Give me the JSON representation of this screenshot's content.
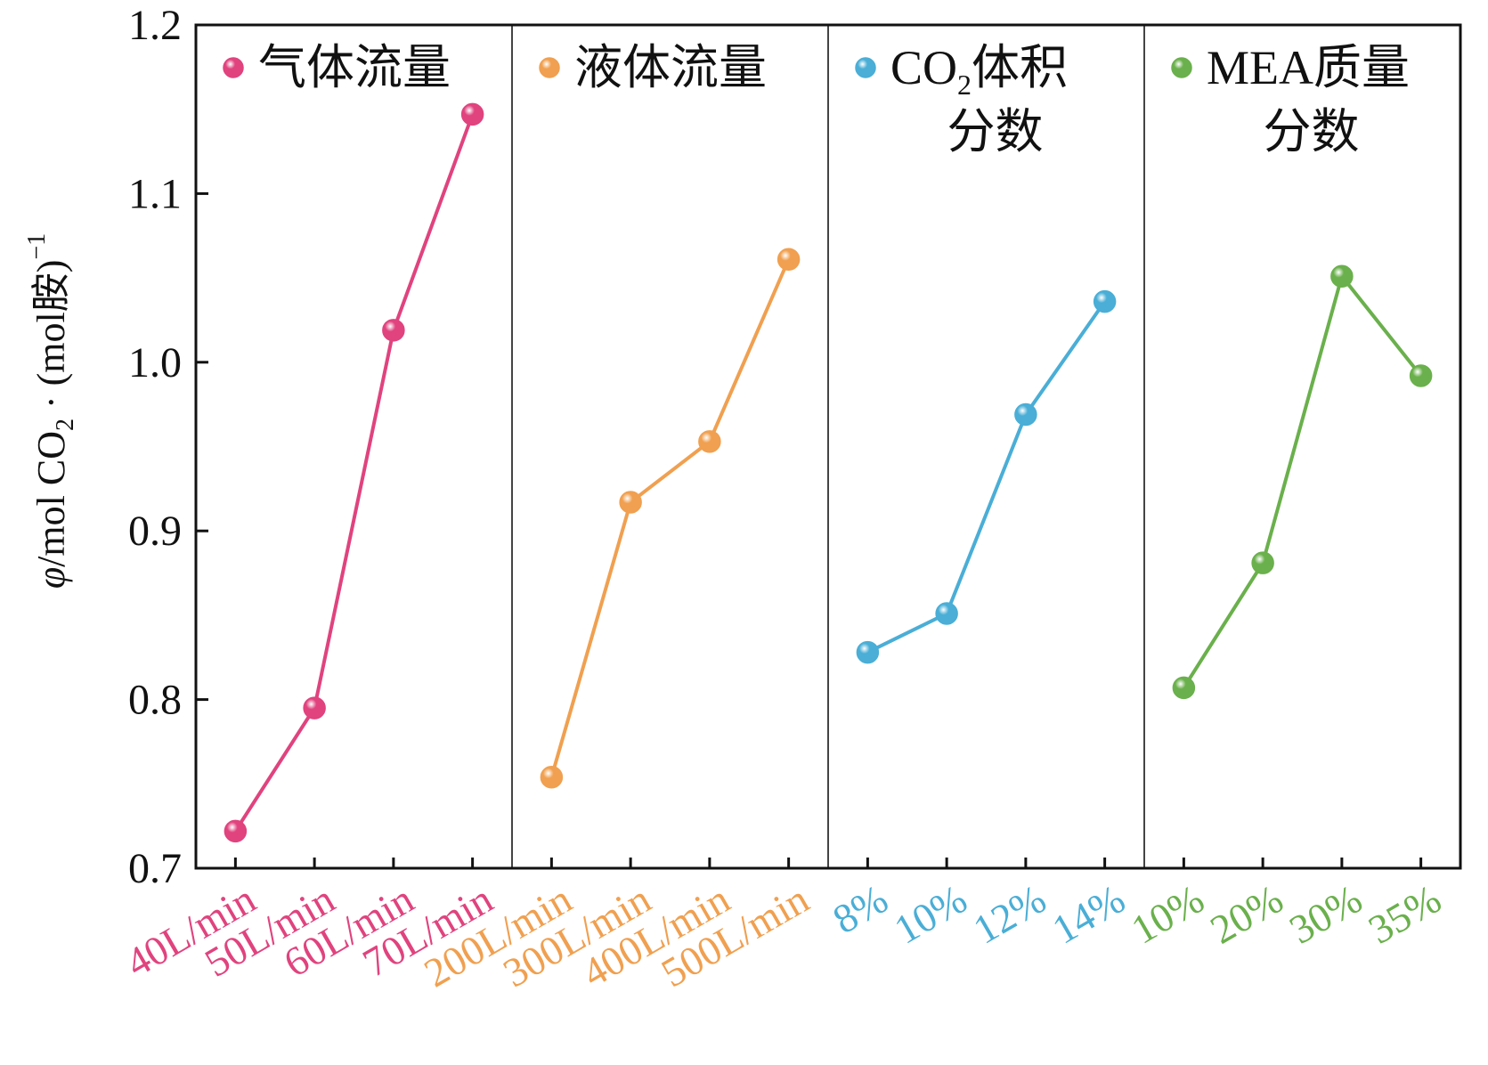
{
  "chart_data": {
    "type": "line",
    "ylabel": {
      "symbol": "φ",
      "text": "/mol CO",
      "sub": "2",
      "mid": " · (mol胺)",
      "sup": "−1"
    },
    "ylim": [
      0.7,
      1.2
    ],
    "yticks": [
      "0.7",
      "0.8",
      "0.9",
      "1.0",
      "1.1",
      "1.2"
    ],
    "grid": false,
    "panels": [
      {
        "name": "气体流量",
        "name_lines": [
          "气体流量"
        ],
        "color": "#e0437e",
        "categories": [
          "40L/min",
          "50L/min",
          "60L/min",
          "70L/min"
        ],
        "values": [
          0.722,
          0.795,
          1.019,
          1.147
        ]
      },
      {
        "name": "液体流量",
        "name_lines": [
          "液体流量"
        ],
        "color": "#f0a050",
        "categories": [
          "200L/min",
          "300L/min",
          "400L/min",
          "500L/min"
        ],
        "values": [
          0.754,
          0.917,
          0.953,
          1.061
        ]
      },
      {
        "name": "CO2体积分数",
        "name_lines": [
          "CO|2|体积",
          "分数"
        ],
        "color": "#4aaed6",
        "categories": [
          "8%",
          "10%",
          "12%",
          "14%"
        ],
        "values": [
          0.828,
          0.851,
          0.969,
          1.036
        ]
      },
      {
        "name": "MEA质量分数",
        "name_lines": [
          "MEA质量",
          "分数"
        ],
        "color": "#6ab04c",
        "categories": [
          "10%",
          "20%",
          "30%",
          "35%"
        ],
        "values": [
          0.807,
          0.881,
          1.051,
          0.992
        ]
      }
    ]
  }
}
